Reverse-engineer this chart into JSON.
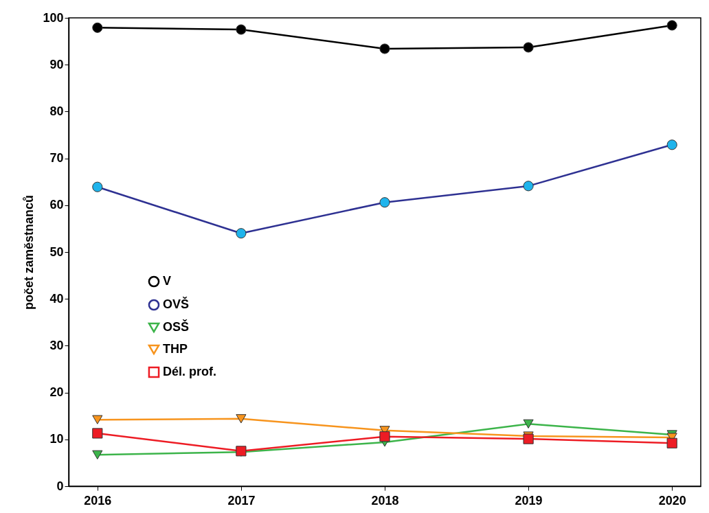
{
  "chart_data": {
    "type": "line",
    "ylabel": "počet zaměstnanců",
    "categories": [
      "2016",
      "2017",
      "2018",
      "2019",
      "2020"
    ],
    "ylim": [
      0,
      100
    ],
    "yticks": [
      0,
      10,
      20,
      30,
      40,
      50,
      60,
      70,
      80,
      90,
      100
    ],
    "grid": false,
    "legend": "center left",
    "line_style": "solid",
    "series": [
      {
        "name": "V",
        "color": "#000000",
        "marker": "circle",
        "values": [
          97.9,
          97.5,
          93.4,
          93.7,
          98.4
        ]
      },
      {
        "name": "OVŠ",
        "color": "#2e3192",
        "colors": [
          "#1fb4ec",
          "#1fb4ec",
          "#1fb4ec",
          "#1fb4ec",
          "#1fb4ec"
        ],
        "marker": "circle",
        "values": [
          63.9,
          54.0,
          60.6,
          64.1,
          72.9
        ]
      },
      {
        "name": "OSŠ",
        "color": "#3cb44a",
        "marker": "triangle",
        "values": [
          6.7,
          7.3,
          9.4,
          13.3,
          11.0
        ]
      },
      {
        "name": "THP",
        "color": "#f7941d",
        "marker": "triangle",
        "values": [
          14.2,
          14.4,
          11.9,
          10.7,
          10.4
        ]
      },
      {
        "name": "Dél. prof.",
        "color": "#ed1c24",
        "marker": "square",
        "values": [
          11.3,
          7.5,
          10.6,
          10.1,
          9.2
        ]
      }
    ]
  }
}
